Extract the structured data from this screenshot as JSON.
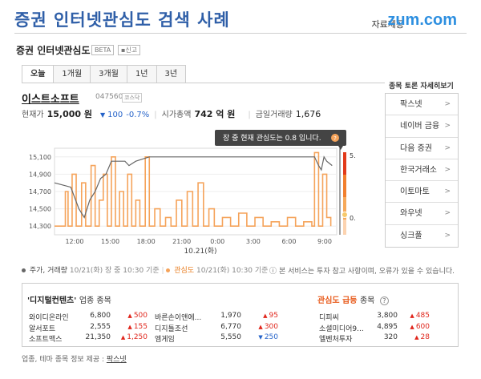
{
  "header": {
    "title": "증권 인터넷관심도 검색 사례",
    "credit": "자료제공",
    "logo": "zum.com"
  },
  "widget": {
    "title": "증권 인터넷관심도",
    "beta": "BETA",
    "report": "신고"
  },
  "tabs": [
    {
      "label": "오늘"
    },
    {
      "label": "1개월"
    },
    {
      "label": "3개월"
    },
    {
      "label": "1년"
    },
    {
      "label": "3년"
    }
  ],
  "stock": {
    "name": "이스트소프트",
    "code": "047560",
    "market": "코스닥",
    "price_label": "현재가",
    "price": "15,000 원",
    "change": "100",
    "change_pct": "-0.7%",
    "cap_label": "시가총액",
    "cap": "742 억 원",
    "volume_label": "금일거래량",
    "volume": "1,676"
  },
  "chart_data": {
    "type": "line",
    "xlabel": "10.21(화)",
    "x_ticks": [
      "12:00",
      "15:00",
      "18:00",
      "21:00",
      "0:00",
      "3:00",
      "6:00",
      "9:00"
    ],
    "y_ticks": [
      15100,
      14900,
      14700,
      14500,
      14300
    ],
    "ylim": [
      14200,
      15200
    ],
    "interest_scale": [
      "5.0",
      "0.0"
    ],
    "interest_ylim": [
      0,
      5
    ],
    "tooltip": "장 중 현재 관심도는 0.8 입니다.",
    "tooltip_value": "0.8",
    "series": [
      {
        "name": "주가, 거래량",
        "color": "#666666",
        "points": [
          [
            0,
            14800
          ],
          [
            1.2,
            14750
          ],
          [
            1.8,
            14500
          ],
          [
            2.2,
            14400
          ],
          [
            2.6,
            14600
          ],
          [
            3.0,
            14700
          ],
          [
            3.4,
            14850
          ],
          [
            3.8,
            14900
          ],
          [
            4.2,
            15050
          ],
          [
            4.7,
            15050
          ],
          [
            5.2,
            15050
          ],
          [
            5.5,
            15000
          ],
          [
            6,
            15050
          ],
          [
            7,
            15100
          ],
          [
            9,
            15100
          ],
          [
            12,
            15100
          ],
          [
            15,
            15100
          ],
          [
            18,
            15100
          ],
          [
            19.2,
            15100
          ],
          [
            19.5,
            15000
          ],
          [
            19.7,
            14950
          ],
          [
            19.9,
            15100
          ],
          [
            20.1,
            15050
          ],
          [
            20.5,
            15000
          ]
        ]
      },
      {
        "name": "관심도",
        "color": "#f5a35a",
        "points": [
          [
            0,
            14300
          ],
          [
            0.5,
            14300
          ],
          [
            0.8,
            14700
          ],
          [
            1.0,
            14300
          ],
          [
            1.3,
            14900
          ],
          [
            1.6,
            14300
          ],
          [
            2.0,
            14800
          ],
          [
            2.3,
            14300
          ],
          [
            2.7,
            15000
          ],
          [
            3.0,
            14300
          ],
          [
            3.3,
            14600
          ],
          [
            3.6,
            14900
          ],
          [
            3.9,
            14300
          ],
          [
            4.2,
            15100
          ],
          [
            4.5,
            14300
          ],
          [
            4.8,
            14700
          ],
          [
            5.1,
            14300
          ],
          [
            5.4,
            14900
          ],
          [
            5.7,
            14300
          ],
          [
            6.0,
            14600
          ],
          [
            6.3,
            14300
          ],
          [
            6.7,
            15100
          ],
          [
            7.0,
            14300
          ],
          [
            7.4,
            14500
          ],
          [
            7.8,
            14300
          ],
          [
            8.2,
            14400
          ],
          [
            8.6,
            14300
          ],
          [
            9.0,
            14600
          ],
          [
            9.4,
            14300
          ],
          [
            9.8,
            14700
          ],
          [
            10.2,
            14300
          ],
          [
            10.6,
            14800
          ],
          [
            11.0,
            14300
          ],
          [
            11.4,
            14500
          ],
          [
            11.8,
            14300
          ],
          [
            12.4,
            14400
          ],
          [
            13.0,
            14300
          ],
          [
            13.6,
            14450
          ],
          [
            14.2,
            14300
          ],
          [
            14.8,
            14400
          ],
          [
            15.4,
            14300
          ],
          [
            16.0,
            14350
          ],
          [
            16.6,
            14300
          ],
          [
            17.2,
            14400
          ],
          [
            17.8,
            14300
          ],
          [
            18.4,
            14350
          ],
          [
            19.0,
            14300
          ],
          [
            19.2,
            15150
          ],
          [
            19.5,
            14300
          ],
          [
            19.8,
            14900
          ],
          [
            20.1,
            14400
          ],
          [
            20.4,
            14300
          ]
        ]
      }
    ]
  },
  "legend": {
    "price_label": "주가, 거래량",
    "price_time": "10/21(화) 장 중 10:30 기준",
    "interest_label": "관심도",
    "interest_time": "10/21(화) 10:30 기준",
    "notice": "본 서비스는 투자 참고 사항이며, 오류가 있을 수 있습니다."
  },
  "side": {
    "title": "종목 토론 자세히보기",
    "items": [
      {
        "label": "팍스넷"
      },
      {
        "label": "네이버 금융"
      },
      {
        "label": "다음 증권"
      },
      {
        "label": "한국거래소"
      },
      {
        "label": "이토마토"
      },
      {
        "label": "와우넷"
      },
      {
        "label": "싱크풀"
      }
    ]
  },
  "industry": {
    "title": "'디지털컨텐츠'",
    "suffix": "업종 종목",
    "col1": [
      {
        "name": "와이디온라인",
        "price": "6,800",
        "change": "500",
        "dir": "up"
      },
      {
        "name": "알서포트",
        "price": "2,555",
        "change": "155",
        "dir": "up"
      },
      {
        "name": "소프트맥스",
        "price": "21,350",
        "change": "1,250",
        "dir": "up"
      }
    ],
    "col2": [
      {
        "name": "바른손이앤에...",
        "price": "1,970",
        "change": "95",
        "dir": "up"
      },
      {
        "name": "디지틀조선",
        "price": "6,770",
        "change": "300",
        "dir": "up"
      },
      {
        "name": "엠게임",
        "price": "5,550",
        "change": "250",
        "dir": "down"
      }
    ]
  },
  "surge": {
    "title": "관심도 급등",
    "suffix": "종목",
    "help": "?",
    "rows": [
      {
        "name": "디피씨",
        "price": "3,800",
        "change": "485",
        "dir": "up"
      },
      {
        "name": "소셜미디어9...",
        "price": "4,895",
        "change": "600",
        "dir": "up"
      },
      {
        "name": "엘벤처투자",
        "price": "320",
        "change": "28",
        "dir": "up"
      }
    ]
  },
  "footer": {
    "note": "업종, 테마 종목 정보 제공 :",
    "provider": "팍스넷"
  }
}
